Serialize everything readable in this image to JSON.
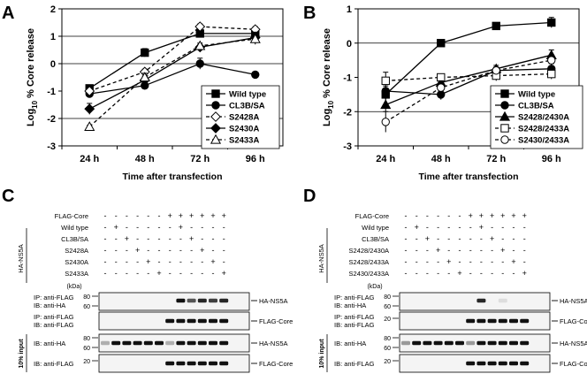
{
  "panels": {
    "A": {
      "letter": "A"
    },
    "B": {
      "letter": "B"
    },
    "C": {
      "letter": "C"
    },
    "D": {
      "letter": "D"
    }
  },
  "chart_data": [
    {
      "type": "line",
      "panel": "A",
      "title": "",
      "xlabel": "Time after transfection",
      "ylabel_main": "Log",
      "ylabel_sub": "10",
      "ylabel_rest": " % Core release",
      "categories": [
        "24 h",
        "48 h",
        "72 h",
        "96 h"
      ],
      "ylim": [
        -3,
        2
      ],
      "yticks": [
        "-3",
        "-2",
        "-1",
        "0",
        "1",
        "2"
      ],
      "gridlines": [
        -2,
        0,
        1
      ],
      "legend_position": "bottom-right",
      "series": [
        {
          "name": "Wild type",
          "marker": "square-filled",
          "dash": "solid",
          "values": [
            -0.9,
            0.4,
            1.1,
            1.1
          ],
          "err": [
            0.1,
            0.15,
            0.1,
            0.15
          ]
        },
        {
          "name": "CL3B/SA",
          "marker": "circle-filled",
          "dash": "solid",
          "values": [
            -1.1,
            -0.8,
            0.0,
            -0.4
          ],
          "err": [
            0.1,
            0.1,
            0.2,
            0.05
          ]
        },
        {
          "name": "S2428A",
          "marker": "diamond-open",
          "dash": "dashed",
          "values": [
            -1.0,
            -0.3,
            1.35,
            1.25
          ],
          "err": [
            0.1,
            0.1,
            0.1,
            0.1
          ]
        },
        {
          "name": "S2430A",
          "marker": "diamond-filled",
          "dash": "solid",
          "values": [
            -1.65,
            -0.6,
            0.6,
            0.95
          ],
          "err": [
            0.2,
            0.15,
            0.1,
            0.2
          ]
        },
        {
          "name": "S2433A",
          "marker": "triangle-open",
          "dash": "dashed",
          "values": [
            -2.3,
            -0.5,
            0.65,
            0.9
          ],
          "err": [
            0.05,
            0.15,
            0.1,
            0.2
          ]
        }
      ]
    },
    {
      "type": "line",
      "panel": "B",
      "title": "",
      "xlabel": "Time after transfection",
      "ylabel_main": "Log",
      "ylabel_sub": "10",
      "ylabel_rest": " % Core release",
      "categories": [
        "24 h",
        "48 h",
        "72 h",
        "96 h"
      ],
      "ylim": [
        -3,
        1
      ],
      "yticks": [
        "-3",
        "-2",
        "-1",
        "0",
        "1"
      ],
      "gridlines": [
        -2,
        0
      ],
      "legend_position": "bottom-right",
      "series": [
        {
          "name": "Wild type",
          "marker": "square-filled",
          "dash": "solid",
          "values": [
            -1.5,
            0.0,
            0.5,
            0.6
          ],
          "err": [
            0.15,
            0.05,
            0.1,
            0.15
          ]
        },
        {
          "name": "CL3B/SA",
          "marker": "circle-filled",
          "dash": "solid",
          "values": [
            -1.4,
            -1.5,
            -0.8,
            -0.75
          ],
          "err": [
            0.15,
            0.15,
            0.1,
            0.15
          ]
        },
        {
          "name": "S2428/2430A",
          "marker": "triangle-filled",
          "dash": "solid",
          "values": [
            -1.8,
            -1.15,
            -0.75,
            -0.35
          ],
          "err": [
            0.2,
            0.15,
            0.1,
            0.15
          ]
        },
        {
          "name": "S2428/2433A",
          "marker": "square-open",
          "dash": "dashed",
          "values": [
            -1.1,
            -1.0,
            -0.95,
            -0.9
          ],
          "err": [
            0.25,
            0.1,
            0.15,
            0.15
          ]
        },
        {
          "name": "S2430/2433A",
          "marker": "circle-open",
          "dash": "dashed",
          "values": [
            -2.3,
            -1.3,
            -0.8,
            -0.5
          ],
          "err": [
            0.3,
            0.2,
            0.1,
            0.15
          ]
        }
      ]
    }
  ],
  "blots": [
    {
      "panel": "C",
      "group_label": "HA-NS5A",
      "rows": [
        {
          "label": "FLAG-Core",
          "signs": [
            "-",
            "-",
            "-",
            "-",
            "-",
            "-",
            "+",
            "+",
            "+",
            "+",
            "+",
            "+"
          ]
        },
        {
          "label": "Wild type",
          "signs": [
            "-",
            "+",
            "-",
            "-",
            "-",
            "-",
            "-",
            "+",
            "-",
            "-",
            "-",
            "-"
          ]
        },
        {
          "label": "CL3B/SA",
          "signs": [
            "-",
            "-",
            "+",
            "-",
            "-",
            "-",
            "-",
            "-",
            "+",
            "-",
            "-",
            "-"
          ]
        },
        {
          "label": "S2428A",
          "signs": [
            "-",
            "-",
            "-",
            "+",
            "-",
            "-",
            "-",
            "-",
            "-",
            "+",
            "-",
            "-"
          ]
        },
        {
          "label": "S2430A",
          "signs": [
            "-",
            "-",
            "-",
            "-",
            "+",
            "-",
            "-",
            "-",
            "-",
            "-",
            "+",
            "-"
          ]
        },
        {
          "label": "S2433A",
          "signs": [
            "-",
            "-",
            "-",
            "-",
            "-",
            "+",
            "-",
            "-",
            "-",
            "-",
            "-",
            "+"
          ]
        }
      ],
      "kda_label": "(kDa)",
      "input_label": "10% input",
      "gels": [
        {
          "ip": "IP: anti-FLAG",
          "ib": "IB: anti-HA",
          "markers": [
            "80",
            "60"
          ],
          "band_label": "HA-NS5A",
          "bands": [
            0,
            0,
            0,
            0,
            0,
            0,
            0,
            1,
            0.7,
            0.9,
            0.8,
            0.9
          ]
        },
        {
          "ip": "IP: anti-FLAG",
          "ib": "IB: anti-FLAG",
          "markers": [],
          "band_label": "FLAG-Core",
          "bands": [
            0,
            0,
            0,
            0,
            0,
            0,
            1,
            1,
            1,
            1,
            1,
            1
          ]
        },
        {
          "ip": "",
          "ib": "IB: anti-HA",
          "markers": [
            "80",
            "60"
          ],
          "band_label": "HA-NS5A",
          "bands": [
            0.3,
            1,
            1,
            1,
            1,
            1,
            0.3,
            1,
            1,
            1,
            1,
            1
          ]
        },
        {
          "ip": "",
          "ib": "IB: anti-FLAG",
          "markers": [
            "20"
          ],
          "band_label": "FLAG-Core",
          "bands": [
            0,
            0,
            0,
            0,
            0,
            0,
            1,
            1,
            1,
            1,
            1,
            1
          ]
        }
      ]
    },
    {
      "panel": "D",
      "group_label": "HA-NS5A",
      "rows": [
        {
          "label": "FLAG-Core",
          "signs": [
            "-",
            "-",
            "-",
            "-",
            "-",
            "-",
            "+",
            "+",
            "+",
            "+",
            "+",
            "+"
          ]
        },
        {
          "label": "Wild type",
          "signs": [
            "-",
            "+",
            "-",
            "-",
            "-",
            "-",
            "-",
            "+",
            "-",
            "-",
            "-",
            "-"
          ]
        },
        {
          "label": "CL3B/SA",
          "signs": [
            "-",
            "-",
            "+",
            "-",
            "-",
            "-",
            "-",
            "-",
            "+",
            "-",
            "-",
            "-"
          ]
        },
        {
          "label": "S2428/2430A",
          "signs": [
            "-",
            "-",
            "-",
            "+",
            "-",
            "-",
            "-",
            "-",
            "-",
            "+",
            "-",
            "-"
          ]
        },
        {
          "label": "S2428/2433A",
          "signs": [
            "-",
            "-",
            "-",
            "-",
            "+",
            "-",
            "-",
            "-",
            "-",
            "-",
            "+",
            "-"
          ]
        },
        {
          "label": "S2430/2433A",
          "signs": [
            "-",
            "-",
            "-",
            "-",
            "-",
            "+",
            "-",
            "-",
            "-",
            "-",
            "-",
            "+"
          ]
        }
      ],
      "kda_label": "(kDa)",
      "input_label": "10% input",
      "gels": [
        {
          "ip": "IP: anti-FLAG",
          "ib": "IB: anti-HA",
          "markers": [
            "80",
            "60"
          ],
          "band_label": "HA-NS5A",
          "bands": [
            0,
            0,
            0,
            0,
            0,
            0,
            0,
            0.9,
            0,
            0.1,
            0,
            0
          ]
        },
        {
          "ip": "IP: anti-FLAG",
          "ib": "IB: anti-FLAG",
          "markers": [
            "20"
          ],
          "band_label": "FLAG-Core",
          "bands": [
            0,
            0,
            0,
            0,
            0,
            0,
            1,
            1,
            1,
            1,
            1,
            1
          ]
        },
        {
          "ip": "",
          "ib": "IB: anti-HA",
          "markers": [
            "80",
            "60"
          ],
          "band_label": "HA-NS5A",
          "bands": [
            0.4,
            1,
            1,
            1,
            1,
            1,
            0.4,
            1,
            1,
            1,
            1,
            1
          ]
        },
        {
          "ip": "",
          "ib": "IB: anti-FLAG",
          "markers": [
            "20"
          ],
          "band_label": "FLAG-Core",
          "bands": [
            0,
            0,
            0,
            0,
            0,
            0,
            1,
            1,
            1,
            1,
            1,
            1
          ]
        }
      ]
    }
  ]
}
